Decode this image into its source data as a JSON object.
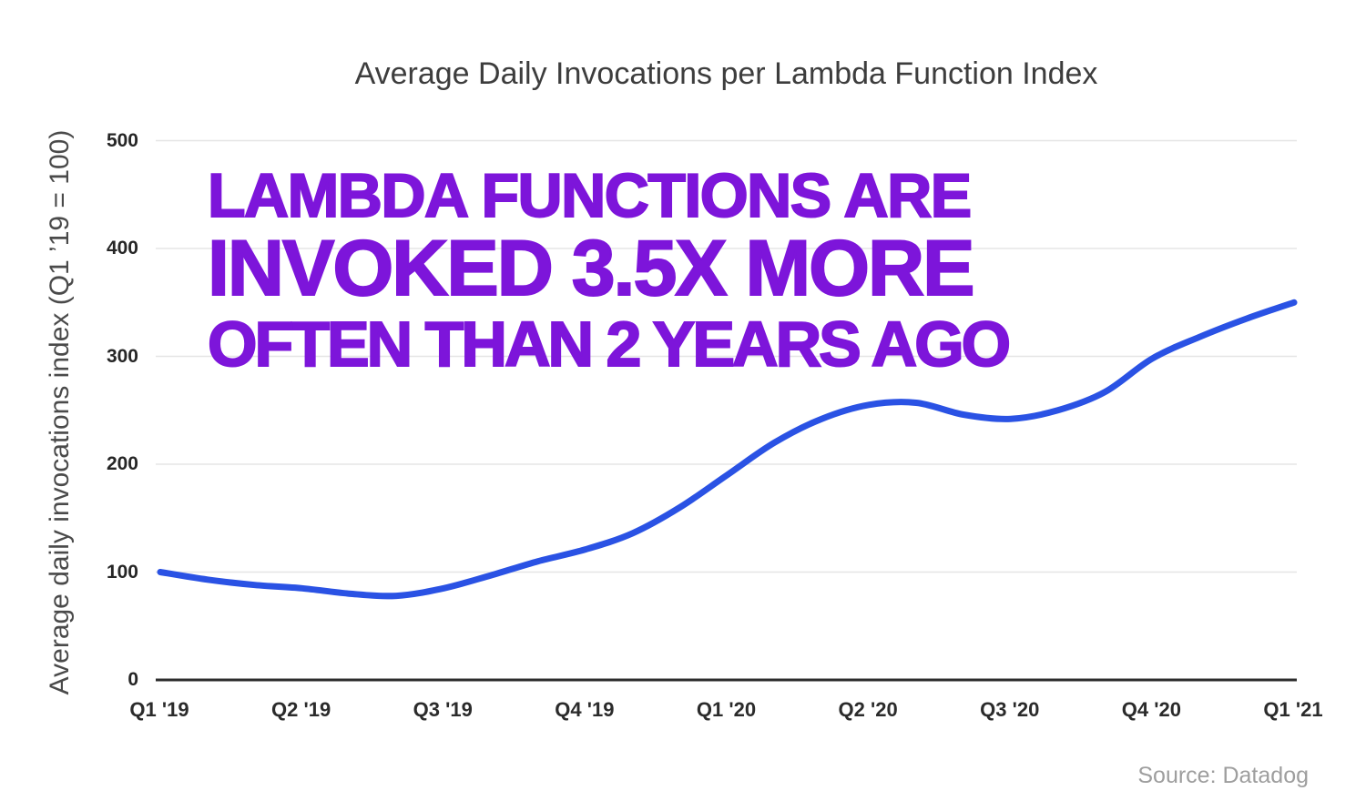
{
  "title": "Average Daily Invocations per Lambda Function Index",
  "y_axis_label": "Average daily invocations index (Q1 ’19 = 100)",
  "annotation": {
    "line1": "LAMBDA FUNCTIONS ARE",
    "line2": "INVOKED 3.5X MORE",
    "line3": "OFTEN THAN 2 YEARS AGO",
    "color": "#7d15da"
  },
  "source": "Source: Datadog",
  "colors": {
    "line": "#2a52e4",
    "grid": "#e5e5e5",
    "axis": "#2d2d2d",
    "title_text": "#3d3d3d",
    "tick_text": "#262626",
    "source_text": "#9e9e9e"
  },
  "chart_data": {
    "type": "line",
    "title": "Average Daily Invocations per Lambda Function Index",
    "xlabel": "",
    "ylabel": "Average daily invocations index (Q1 ’19 = 100)",
    "categories": [
      "Q1 '19",
      "Q2 '19",
      "Q3 '19",
      "Q4 '19",
      "Q1 '20",
      "Q2 '20",
      "Q3 '20",
      "Q4 '20",
      "Q1 '21"
    ],
    "series": [
      {
        "name": "Average daily invocations index",
        "values_at_quarters": [
          100,
          85,
          86,
          121,
          190,
          255,
          242,
          298,
          350
        ]
      }
    ],
    "curve_samples_monthly": [
      100,
      93,
      88,
      85,
      80,
      78,
      85,
      97,
      110,
      121,
      136,
      160,
      190,
      220,
      242,
      255,
      257,
      246,
      242,
      250,
      267,
      298,
      318,
      335,
      350
    ],
    "y_ticks": [
      0,
      100,
      200,
      300,
      400,
      500
    ],
    "ylim": [
      0,
      500
    ],
    "grid": "horizontal",
    "legend": false,
    "annotations": [
      "LAMBDA FUNCTIONS ARE",
      "INVOKED 3.5X MORE",
      "OFTEN THAN 2 YEARS AGO"
    ],
    "source_note": "Source: Datadog"
  }
}
